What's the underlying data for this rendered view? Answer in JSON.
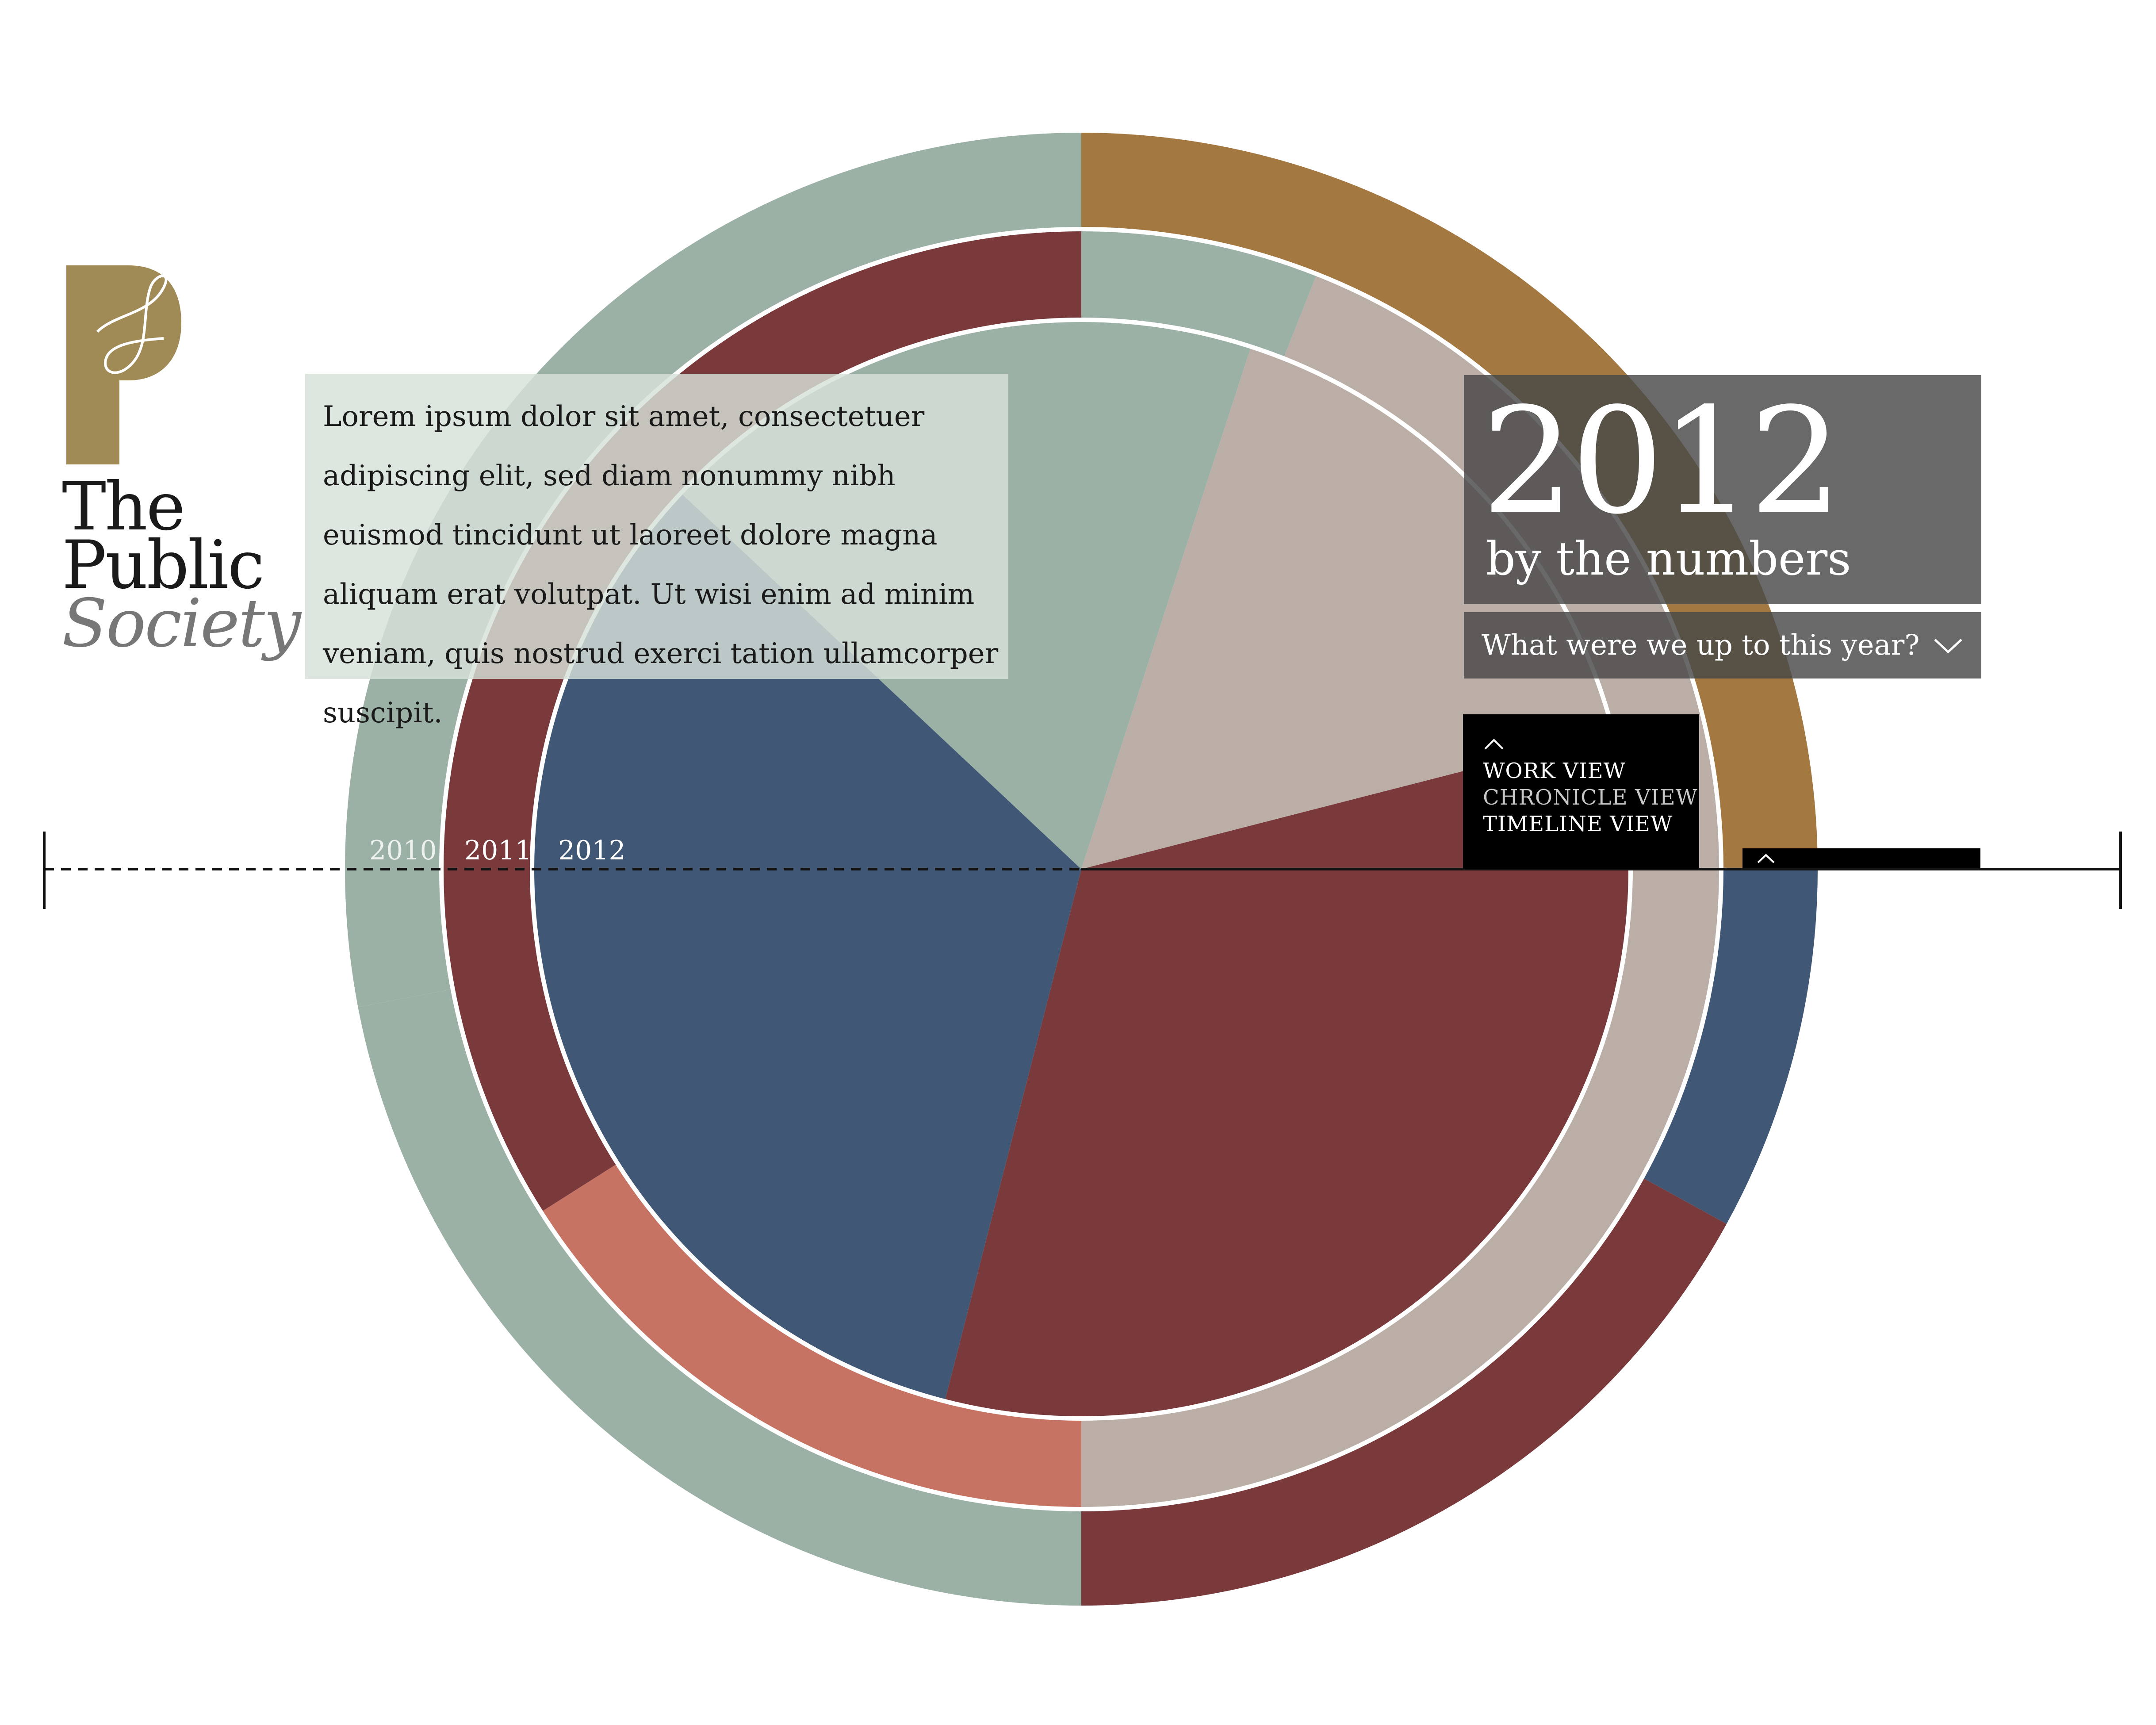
{
  "brand": {
    "logo_line1": "The",
    "logo_line2": "Public",
    "logo_line3": "Society",
    "logo_color": "#A08A55"
  },
  "intro": {
    "text": "Lorem ipsum dolor sit amet, consectetuer adipiscing elit, sed diam nonummy nibh euismod tincidunt ut laoreet dolore magna aliquam erat volutpat. Ut wisi enim ad minim veniam, quis nostrud exerci tation ullamcorper suscipit."
  },
  "header": {
    "year": "2012",
    "subtitle": "by the numbers"
  },
  "dropdown": {
    "label": "What were we up to this year?",
    "icon": "chevron-down-icon"
  },
  "view_menu": {
    "items": [
      "WORK VIEW",
      "CHRONICLE VIEW",
      "TIMELINE VIEW"
    ],
    "icon": "chevron-up-icon"
  },
  "timeline": {
    "years": [
      "2010",
      "2011",
      "2012"
    ],
    "selected": "2012"
  },
  "colors": {
    "sage": "#9CB1A6",
    "gold": "#A37841",
    "maroon": "#7A393B",
    "navy": "#405876",
    "taupe": "#BAAEA6",
    "coral": "#C77364",
    "panel": "#484848"
  },
  "chart_data": {
    "type": "pie",
    "rings": [
      {
        "name": "",
        "slices": [
          {
            "value": 25.0,
            "color": "#A37841"
          },
          {
            "value": 8.0,
            "color": "#405876"
          },
          {
            "value": 17.0,
            "color": "#7A393B"
          },
          {
            "value": 22.0,
            "color": "#9CB1A6"
          },
          {
            "value": 28.0,
            "color": "#9CB1A6"
          }
        ]
      },
      {
        "name": "",
        "slices": [
          {
            "value": 6.0,
            "color": "#9CB1A6"
          },
          {
            "value": 44.0,
            "color": "#BAAEA6"
          },
          {
            "value": 16.0,
            "color": "#C77364"
          },
          {
            "value": 34.0,
            "color": "#7A393B"
          }
        ]
      },
      {
        "name": "",
        "slices": [
          {
            "value": 5.0,
            "color": "#9CB1A6"
          },
          {
            "value": 16.0,
            "color": "#BAAEA6"
          },
          {
            "value": 33.0,
            "color": "#7A393B"
          },
          {
            "value": 33.0,
            "color": "#405876"
          },
          {
            "value": 13.0,
            "color": "#9CB1A6"
          }
        ]
      }
    ]
  }
}
